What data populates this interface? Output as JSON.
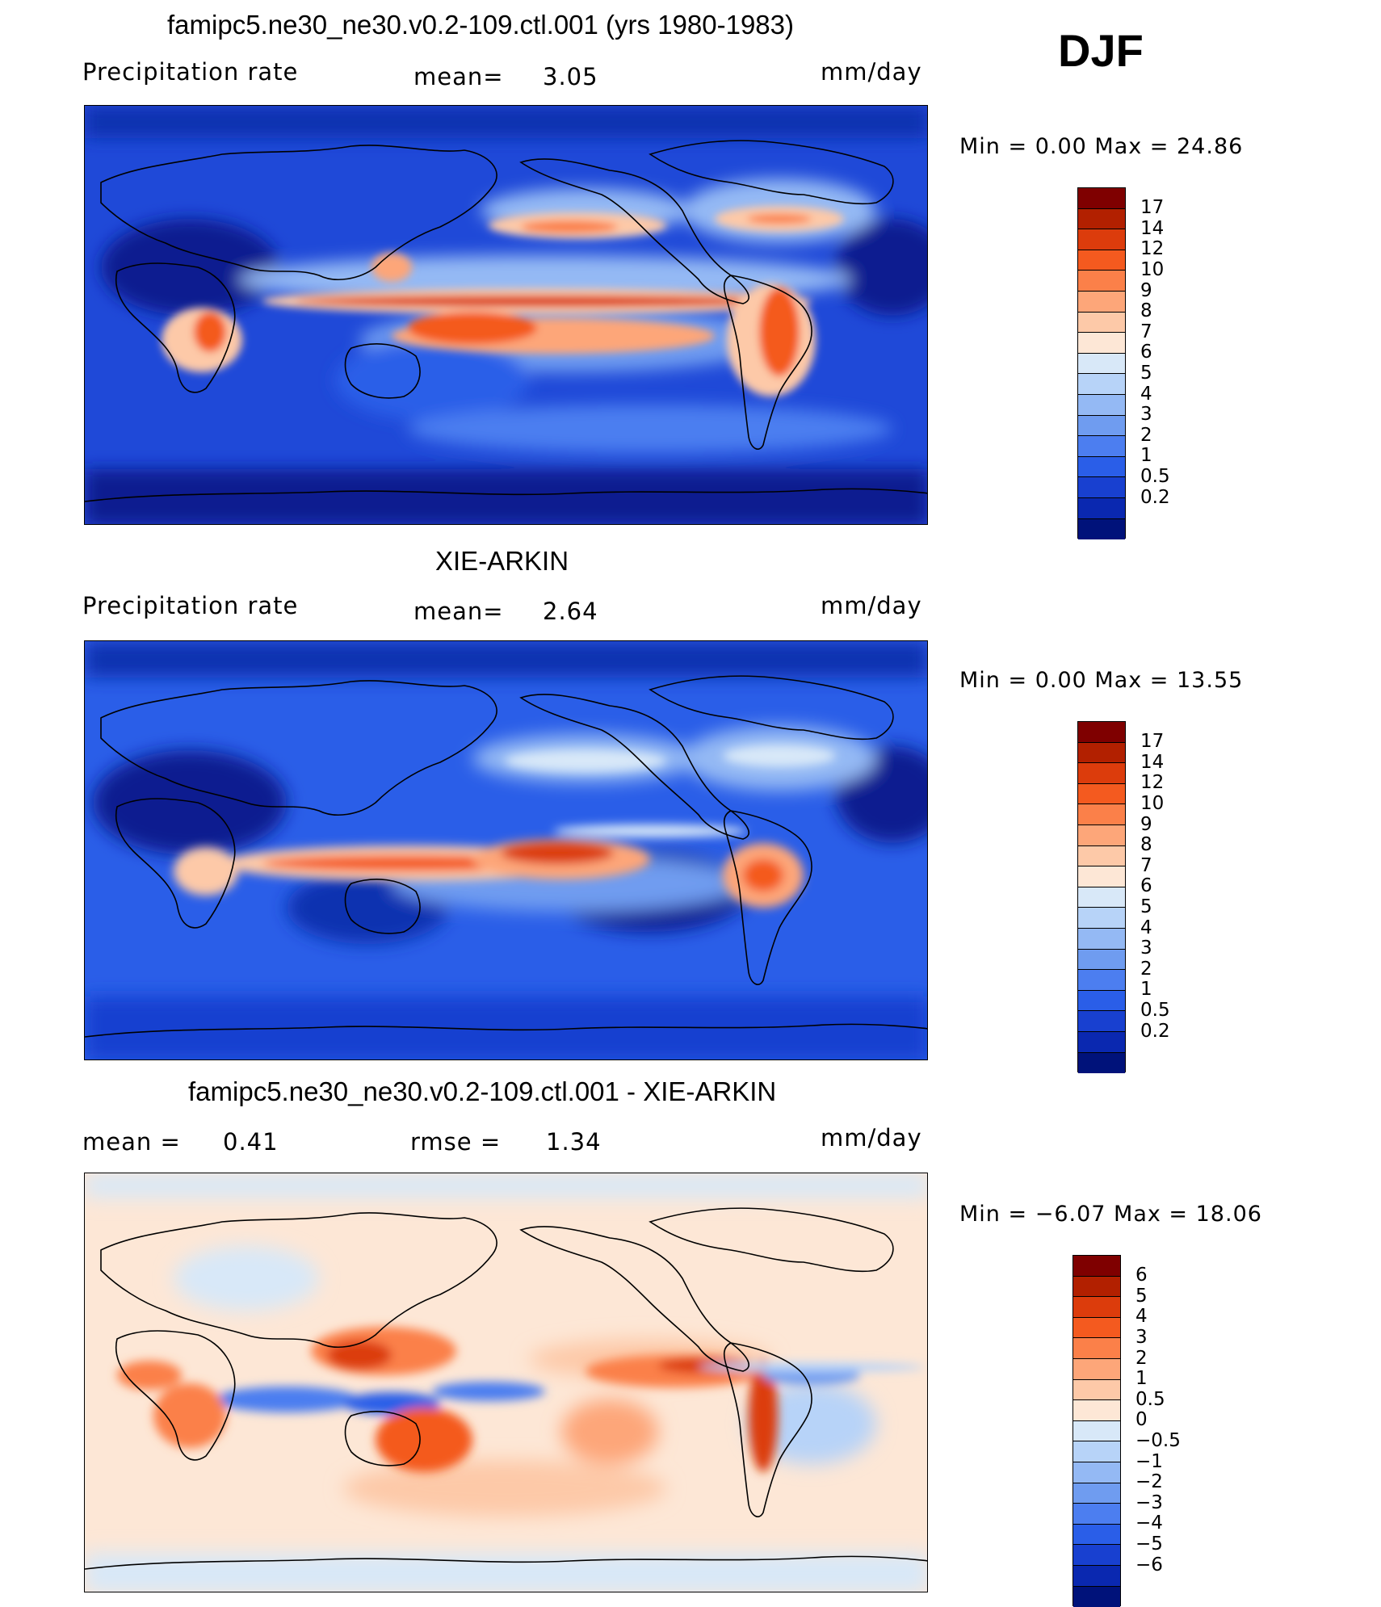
{
  "season": "DJF",
  "panels": [
    {
      "title": "famipc5.ne30_ne30.v0.2-109.ctl.001 (yrs 1980-1983)",
      "left_label": "Precipitation  rate",
      "center_label": "mean=",
      "center_value": "3.05",
      "right_label": "mm/day",
      "stats": "Min  =     0.00  Max  =     24.86",
      "type": "absolute",
      "colorbar": {
        "colors": [
          "#7f0000",
          "#b22000",
          "#dc3c0c",
          "#f45a1f",
          "#fb8049",
          "#fda679",
          "#fdc9a8",
          "#fde7d6",
          "#d8e8f8",
          "#b7d3f8",
          "#94b9f4",
          "#6f9cf0",
          "#4c7ef0",
          "#2a5ee8",
          "#1840d0",
          "#0a28b0",
          "#00127a"
        ],
        "labels": [
          "17",
          "14",
          "12",
          "10",
          "9",
          "8",
          "7",
          "6",
          "5",
          "4",
          "3",
          "2",
          "1",
          "0.5",
          "0.2"
        ]
      }
    },
    {
      "title": "XIE-ARKIN",
      "left_label": "Precipitation  rate",
      "center_label": "mean=",
      "center_value": "2.64",
      "right_label": "mm/day",
      "stats": "Min  =     0.00  Max  =     13.55",
      "type": "absolute",
      "colorbar": {
        "colors": [
          "#7f0000",
          "#b22000",
          "#dc3c0c",
          "#f45a1f",
          "#fb8049",
          "#fda679",
          "#fdc9a8",
          "#fde7d6",
          "#d8e8f8",
          "#b7d3f8",
          "#94b9f4",
          "#6f9cf0",
          "#4c7ef0",
          "#2a5ee8",
          "#1840d0",
          "#0a28b0",
          "#00127a"
        ],
        "labels": [
          "17",
          "14",
          "12",
          "10",
          "9",
          "8",
          "7",
          "6",
          "5",
          "4",
          "3",
          "2",
          "1",
          "0.5",
          "0.2"
        ]
      }
    },
    {
      "title": "famipc5.ne30_ne30.v0.2-109.ctl.001 - XIE-ARKIN",
      "left_label": "mean  =",
      "left_value": "0.41",
      "center_label": "rmse  =",
      "center_value": "1.34",
      "right_label": "mm/day",
      "stats": "Min  =   −6.07  Max  =     18.06",
      "type": "difference",
      "colorbar": {
        "colors": [
          "#7f0000",
          "#b22000",
          "#dc3c0c",
          "#f45a1f",
          "#fb8049",
          "#fda679",
          "#fdc9a8",
          "#fde7d6",
          "#d8e8f8",
          "#b7d3f8",
          "#94b9f4",
          "#6f9cf0",
          "#4c7ef0",
          "#2a5ee8",
          "#1840d0",
          "#0a28b0",
          "#00127a"
        ],
        "labels": [
          "6",
          "5",
          "4",
          "3",
          "2",
          "1",
          "0.5",
          "0",
          "−0.5",
          "−1",
          "−2",
          "−3",
          "−4",
          "−5",
          "−6"
        ]
      }
    }
  ]
}
